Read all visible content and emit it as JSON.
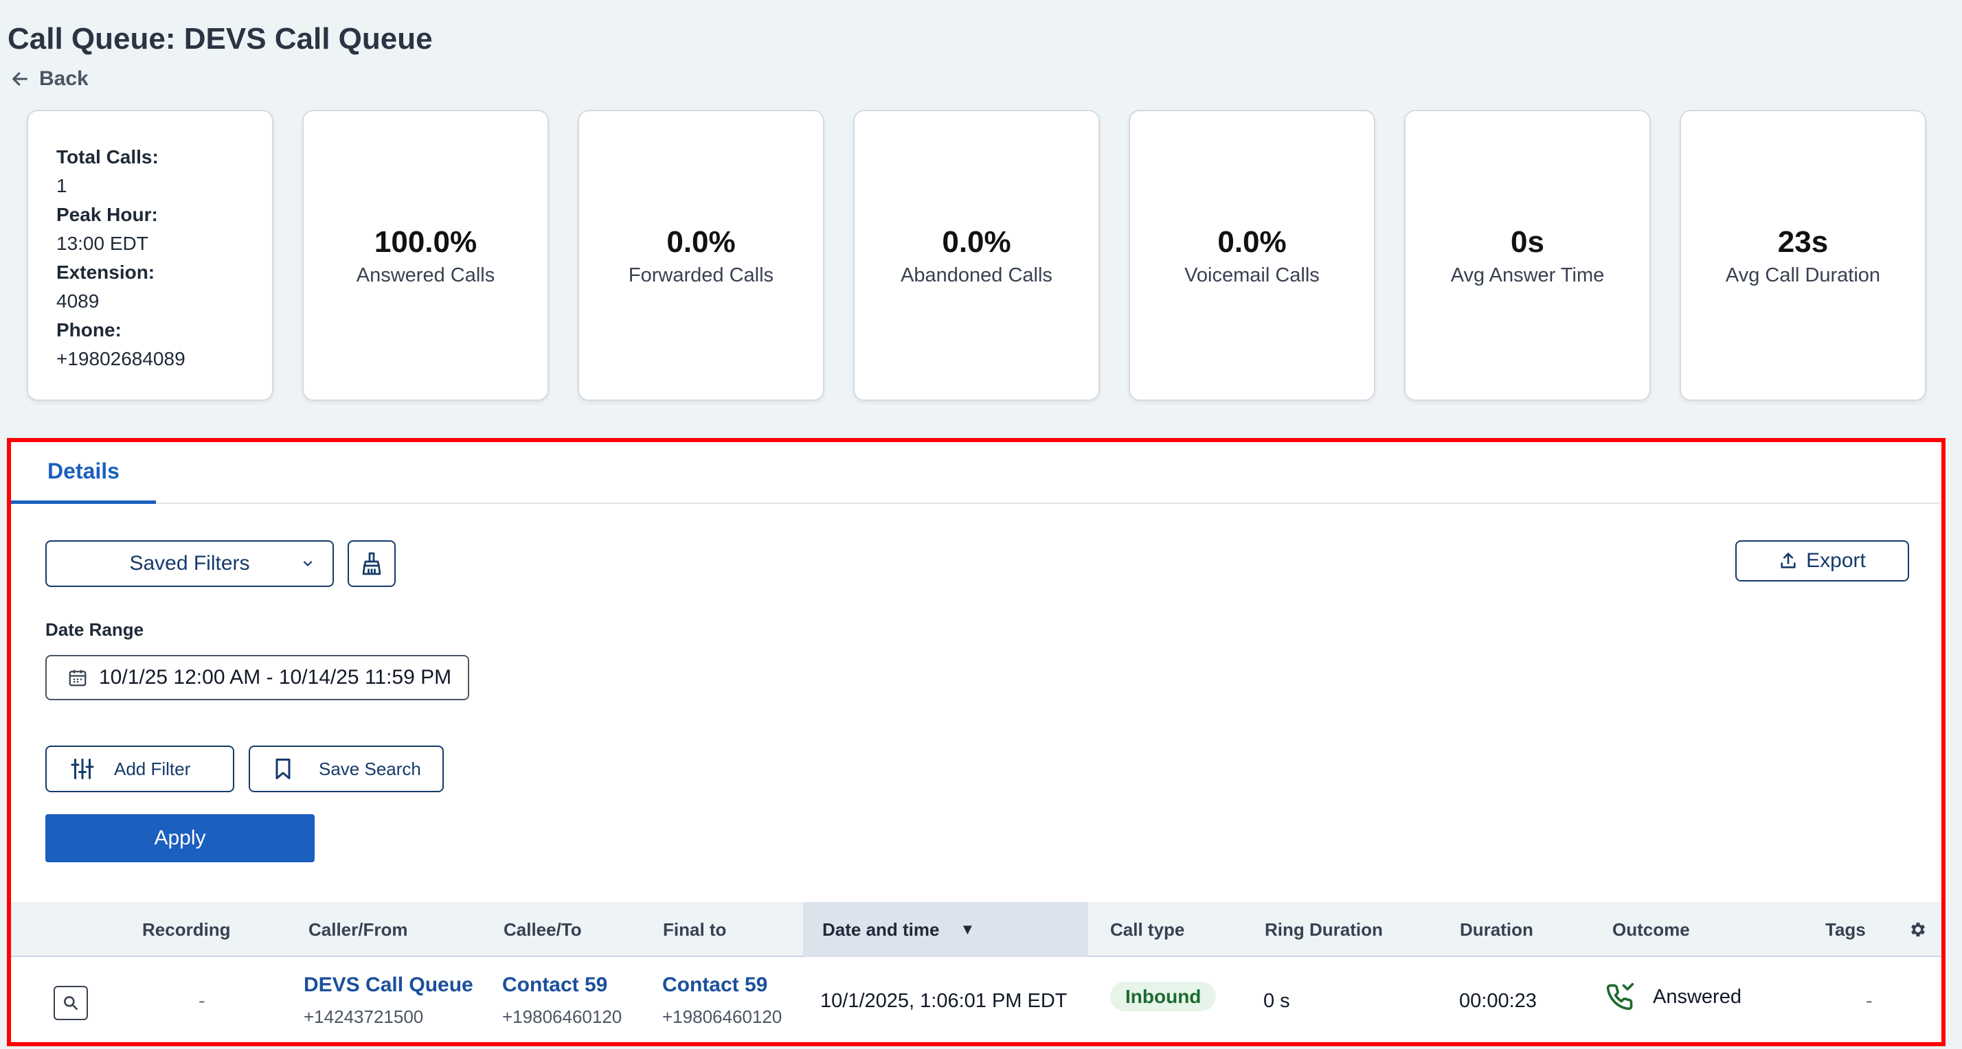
{
  "page": {
    "title": "Call Queue: DEVS Call Queue",
    "back_label": "Back"
  },
  "info_card": {
    "total_calls_label": "Total Calls:",
    "total_calls": "1",
    "peak_hour_label": "Peak Hour:",
    "peak_hour": "13:00 EDT",
    "extension_label": "Extension:",
    "extension": "4089",
    "phone_label": "Phone:",
    "phone": "+19802684089"
  },
  "metrics": [
    {
      "value": "100.0%",
      "label": "Answered Calls"
    },
    {
      "value": "0.0%",
      "label": "Forwarded Calls"
    },
    {
      "value": "0.0%",
      "label": "Abandoned Calls"
    },
    {
      "value": "0.0%",
      "label": "Voicemail Calls"
    },
    {
      "value": "0s",
      "label": "Avg Answer Time"
    },
    {
      "value": "23s",
      "label": "Avg Call Duration"
    }
  ],
  "details": {
    "tab_label": "Details",
    "saved_filters_label": "Saved Filters",
    "export_label": "Export",
    "date_range_label": "Date Range",
    "date_range_value": "10/1/25 12:00 AM - 10/14/25 11:59 PM",
    "add_filter_label": "Add Filter",
    "save_search_label": "Save Search",
    "apply_label": "Apply"
  },
  "table": {
    "columns": [
      "Recording",
      "Caller/From",
      "Callee/To",
      "Final to",
      "Date and time",
      "Call type",
      "Ring Duration",
      "Duration",
      "Outcome",
      "Tags"
    ],
    "sort_indicator": "▼",
    "rows": [
      {
        "recording": "-",
        "caller_name": "DEVS Call Queue",
        "caller_number": "+14243721500",
        "callee_name": "Contact 59",
        "callee_number": "+19806460120",
        "final_name": "Contact 59",
        "final_number": "+19806460120",
        "datetime": "10/1/2025, 1:06:01 PM EDT",
        "call_type": "Inbound",
        "ring_duration": "0 s",
        "duration": "00:00:23",
        "outcome": "Answered",
        "tags": "-"
      }
    ]
  },
  "colors": {
    "accent": "#1b5fbf",
    "highlight_border": "#ff0000",
    "inbound_badge_bg": "#e6f4ea",
    "answered_icon": "#1e6b2f"
  },
  "icons": [
    "back-arrow-icon",
    "chevron-down-icon",
    "broom-icon",
    "upload-icon",
    "calendar-icon",
    "sliders-icon",
    "bookmark-icon",
    "search-icon",
    "gear-icon",
    "phone-answered-icon"
  ]
}
